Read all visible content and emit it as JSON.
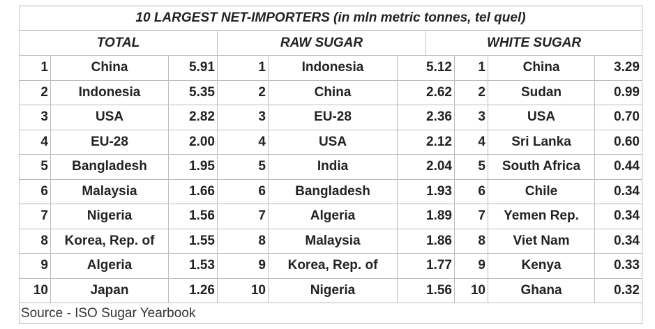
{
  "table": {
    "title": "10 LARGEST NET-IMPORTERS (in mln metric tonnes, tel quel)",
    "groups": [
      {
        "header": "TOTAL",
        "rows": [
          [
            "1",
            "China",
            "5.91"
          ],
          [
            "2",
            "Indonesia",
            "5.35"
          ],
          [
            "3",
            "USA",
            "2.82"
          ],
          [
            "4",
            "EU-28",
            "2.00"
          ],
          [
            "5",
            "Bangladesh",
            "1.95"
          ],
          [
            "6",
            "Malaysia",
            "1.66"
          ],
          [
            "7",
            "Nigeria",
            "1.56"
          ],
          [
            "8",
            "Korea, Rep. of",
            "1.55"
          ],
          [
            "9",
            "Algeria",
            "1.53"
          ],
          [
            "10",
            "Japan",
            "1.26"
          ]
        ]
      },
      {
        "header": "RAW SUGAR",
        "rows": [
          [
            "1",
            "Indonesia",
            "5.12"
          ],
          [
            "2",
            "China",
            "2.62"
          ],
          [
            "3",
            "EU-28",
            "2.36"
          ],
          [
            "4",
            "USA",
            "2.12"
          ],
          [
            "5",
            "India",
            "2.04"
          ],
          [
            "6",
            "Bangladesh",
            "1.93"
          ],
          [
            "7",
            "Algeria",
            "1.89"
          ],
          [
            "8",
            "Malaysia",
            "1.86"
          ],
          [
            "9",
            "Korea, Rep. of",
            "1.77"
          ],
          [
            "10",
            "Nigeria",
            "1.56"
          ]
        ]
      },
      {
        "header": "WHITE SUGAR",
        "rows": [
          [
            "1",
            "China",
            "3.29"
          ],
          [
            "2",
            "Sudan",
            "0.99"
          ],
          [
            "3",
            "USA",
            "0.70"
          ],
          [
            "4",
            "Sri Lanka",
            "0.60"
          ],
          [
            "5",
            "South Africa",
            "0.44"
          ],
          [
            "6",
            "Chile",
            "0.34"
          ],
          [
            "7",
            "Yemen Rep.",
            "0.34"
          ],
          [
            "8",
            "Viet Nam",
            "0.34"
          ],
          [
            "9",
            "Kenya",
            "0.33"
          ],
          [
            "10",
            "Ghana",
            "0.32"
          ]
        ]
      }
    ],
    "source": "Source - ISO Sugar Yearbook"
  }
}
